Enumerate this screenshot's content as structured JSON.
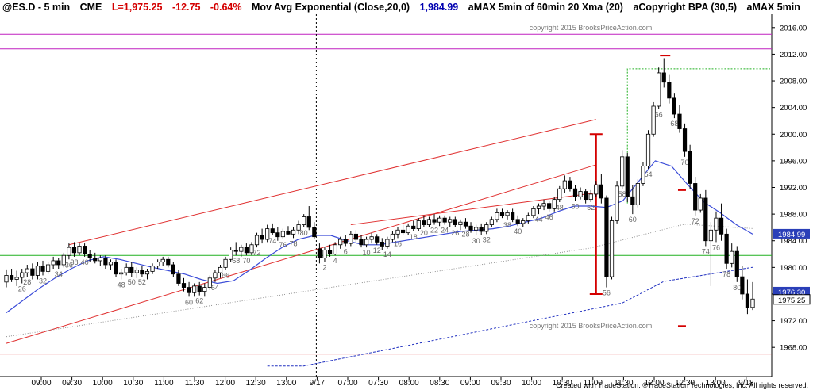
{
  "header": {
    "symbol": "@ES.D - 5 min",
    "exchange": "CME",
    "last": "L=1,975.25",
    "change": "-12.75",
    "change_pct": "-0.64%",
    "indicator": "Mov Avg Exponential (Close,20,0)",
    "indicator_value": "1,984.99",
    "indicator2": "aMAX 5min of 60min 20 Xma (20)",
    "indicator3": "aCopyright BPA (30,5)",
    "indicator4": "aMAX 5min"
  },
  "colors": {
    "up_candle": "#ffffff",
    "down_candle": "#000000",
    "ema": "#3a4bd8",
    "channel": "#e03030",
    "support": "#20b020",
    "magenta": "#c020c0",
    "dotted_gray": "#909090",
    "blue_dashed": "#2030c0",
    "price_box": "#2a3fb8"
  },
  "watermark": "copyright 2015 BrooksPriceAction.com",
  "credit": "Created with TradeStation. ©TradeStation Technologies, Inc. All rights reserved.",
  "chart_data": {
    "type": "candlestick",
    "ylim": [
      1966,
      2018
    ],
    "y_ticks": [
      "2016.00",
      "2012.00",
      "2008.00",
      "2004.00",
      "2000.00",
      "1996.00",
      "1992.00",
      "1988.00",
      "1984.00",
      "1980.00",
      "1976.00",
      "1972.00",
      "1968.00"
    ],
    "x_ticks": [
      "09:00",
      "09:30",
      "10:00",
      "10:30",
      "11:00",
      "11:30",
      "12:00",
      "12:30",
      "13:00",
      "9/17",
      "07:00",
      "07:30",
      "08:00",
      "08:30",
      "09:00",
      "09:30",
      "10:00",
      "10:30",
      "11:00",
      "11:30",
      "12:00",
      "12:30",
      "13:00",
      "9/18"
    ],
    "price_labels": [
      {
        "value": 1984.99,
        "text": "1984.99"
      },
      {
        "value": 1976.3,
        "text": "1976.30"
      },
      {
        "value": 1975.25,
        "text": "1975.25"
      }
    ],
    "horizontal_lines": [
      {
        "name": "magenta-high-1",
        "value": 2015.0
      },
      {
        "name": "magenta-high-2",
        "value": 2012.8
      },
      {
        "name": "green-support",
        "value": 1981.8
      },
      {
        "name": "red-low",
        "value": 1967.0
      }
    ],
    "bar_numbers": [
      {
        "bar": 3,
        "text": "26"
      },
      {
        "bar": 4,
        "text": "28"
      },
      {
        "bar": 7,
        "text": "32"
      },
      {
        "bar": 10,
        "text": "34"
      },
      {
        "bar": 12,
        "text": "36"
      },
      {
        "bar": 13,
        "text": "38"
      },
      {
        "bar": 15,
        "text": "40"
      },
      {
        "bar": 22,
        "text": "48"
      },
      {
        "bar": 24,
        "text": "50"
      },
      {
        "bar": 26,
        "text": "52"
      },
      {
        "bar": 35,
        "text": "60"
      },
      {
        "bar": 37,
        "text": "62"
      },
      {
        "bar": 40,
        "text": "64"
      },
      {
        "bar": 42,
        "text": "66"
      },
      {
        "bar": 44,
        "text": "68"
      },
      {
        "bar": 46,
        "text": "70"
      },
      {
        "bar": 48,
        "text": "72"
      },
      {
        "bar": 51,
        "text": "74"
      },
      {
        "bar": 53,
        "text": "76"
      },
      {
        "bar": 55,
        "text": "78"
      },
      {
        "bar": 57,
        "text": "80"
      },
      {
        "bar": 61,
        "text": "2"
      },
      {
        "bar": 63,
        "text": "4"
      },
      {
        "bar": 65,
        "text": "6"
      },
      {
        "bar": 69,
        "text": "10"
      },
      {
        "bar": 71,
        "text": "12"
      },
      {
        "bar": 73,
        "text": "14"
      },
      {
        "bar": 75,
        "text": "16"
      },
      {
        "bar": 78,
        "text": "18"
      },
      {
        "bar": 80,
        "text": "20"
      },
      {
        "bar": 82,
        "text": "22"
      },
      {
        "bar": 84,
        "text": "24"
      },
      {
        "bar": 86,
        "text": "26"
      },
      {
        "bar": 88,
        "text": "28"
      },
      {
        "bar": 90,
        "text": "30"
      },
      {
        "bar": 92,
        "text": "32"
      },
      {
        "bar": 96,
        "text": "38"
      },
      {
        "bar": 98,
        "text": "40"
      },
      {
        "bar": 102,
        "text": "44"
      },
      {
        "bar": 104,
        "text": "46"
      },
      {
        "bar": 106,
        "text": "48"
      },
      {
        "bar": 109,
        "text": "50"
      },
      {
        "bar": 112,
        "text": "52"
      },
      {
        "bar": 115,
        "text": "56"
      },
      {
        "bar": 118,
        "text": "58"
      },
      {
        "bar": 120,
        "text": "60"
      },
      {
        "bar": 123,
        "text": "64"
      },
      {
        "bar": 125,
        "text": "66"
      },
      {
        "bar": 128,
        "text": "68"
      },
      {
        "bar": 130,
        "text": "70"
      },
      {
        "bar": 132,
        "text": "72"
      },
      {
        "bar": 134,
        "text": "74"
      },
      {
        "bar": 136,
        "text": "76"
      },
      {
        "bar": 138,
        "text": "78"
      },
      {
        "bar": 140,
        "text": "80"
      }
    ],
    "bars": [
      [
        1977.8,
        1979.7,
        1977.0,
        1978.8
      ],
      [
        1978.8,
        1979.8,
        1977.8,
        1978.2
      ],
      [
        1978.2,
        1979.5,
        1977.2,
        1978.5
      ],
      [
        1978.5,
        1979.8,
        1977.6,
        1979.2
      ],
      [
        1979.2,
        1980.4,
        1978.6,
        1979.8
      ],
      [
        1979.8,
        1980.6,
        1978.2,
        1978.8
      ],
      [
        1978.8,
        1980.8,
        1978.2,
        1980.2
      ],
      [
        1980.2,
        1981.0,
        1978.8,
        1979.4
      ],
      [
        1979.4,
        1980.8,
        1979.0,
        1980.4
      ],
      [
        1980.4,
        1981.6,
        1979.8,
        1981.0
      ],
      [
        1981.0,
        1981.4,
        1979.8,
        1980.4
      ],
      [
        1980.4,
        1982.2,
        1980.0,
        1981.8
      ],
      [
        1981.8,
        1983.6,
        1981.2,
        1983.0
      ],
      [
        1983.0,
        1983.8,
        1981.6,
        1982.2
      ],
      [
        1982.2,
        1983.6,
        1981.8,
        1983.2
      ],
      [
        1983.2,
        1983.6,
        1981.6,
        1982.0
      ],
      [
        1982.0,
        1982.6,
        1980.8,
        1981.4
      ],
      [
        1981.4,
        1982.2,
        1980.6,
        1981.0
      ],
      [
        1981.0,
        1981.8,
        1980.2,
        1981.4
      ],
      [
        1981.4,
        1981.8,
        1979.8,
        1980.4
      ],
      [
        1980.4,
        1981.2,
        1979.6,
        1980.8
      ],
      [
        1980.8,
        1981.2,
        1978.6,
        1979.0
      ],
      [
        1979.0,
        1979.8,
        1978.2,
        1979.2
      ],
      [
        1979.2,
        1980.6,
        1978.8,
        1980.0
      ],
      [
        1980.0,
        1980.8,
        1978.6,
        1979.2
      ],
      [
        1979.2,
        1980.0,
        1978.4,
        1979.6
      ],
      [
        1979.6,
        1980.2,
        1978.6,
        1979.0
      ],
      [
        1979.0,
        1979.8,
        1978.2,
        1979.4
      ],
      [
        1979.4,
        1980.6,
        1979.0,
        1980.2
      ],
      [
        1980.2,
        1981.2,
        1979.8,
        1980.8
      ],
      [
        1980.8,
        1981.6,
        1980.2,
        1981.2
      ],
      [
        1981.2,
        1981.6,
        1980.0,
        1980.4
      ],
      [
        1980.4,
        1980.8,
        1978.6,
        1979.0
      ],
      [
        1979.0,
        1979.6,
        1977.2,
        1977.6
      ],
      [
        1977.6,
        1978.4,
        1976.4,
        1977.0
      ],
      [
        1977.0,
        1977.8,
        1975.6,
        1976.2
      ],
      [
        1976.2,
        1977.6,
        1975.6,
        1977.2
      ],
      [
        1977.2,
        1977.8,
        1975.8,
        1976.4
      ],
      [
        1976.4,
        1977.6,
        1975.6,
        1977.0
      ],
      [
        1977.0,
        1978.8,
        1976.6,
        1978.4
      ],
      [
        1978.4,
        1979.6,
        1977.8,
        1979.2
      ],
      [
        1979.2,
        1980.4,
        1978.4,
        1980.0
      ],
      [
        1980.0,
        1981.6,
        1979.6,
        1981.2
      ],
      [
        1981.2,
        1983.0,
        1980.8,
        1982.6
      ],
      [
        1982.6,
        1983.8,
        1981.8,
        1982.4
      ],
      [
        1982.4,
        1983.4,
        1981.6,
        1983.0
      ],
      [
        1983.0,
        1983.6,
        1981.8,
        1982.2
      ],
      [
        1982.2,
        1983.8,
        1981.8,
        1983.4
      ],
      [
        1983.4,
        1985.2,
        1983.0,
        1984.8
      ],
      [
        1984.8,
        1985.8,
        1983.6,
        1984.2
      ],
      [
        1984.2,
        1986.4,
        1983.8,
        1985.8
      ],
      [
        1985.8,
        1986.6,
        1984.8,
        1985.2
      ],
      [
        1985.2,
        1986.0,
        1984.0,
        1984.6
      ],
      [
        1984.6,
        1985.8,
        1984.2,
        1985.4
      ],
      [
        1985.4,
        1986.2,
        1984.8,
        1985.0
      ],
      [
        1985.0,
        1986.0,
        1984.4,
        1985.6
      ],
      [
        1985.6,
        1987.0,
        1985.0,
        1986.4
      ],
      [
        1986.4,
        1988.0,
        1986.0,
        1987.6
      ],
      [
        1987.6,
        1989.2,
        1985.6,
        1986.0
      ],
      [
        1986.0,
        1986.8,
        1984.2,
        1984.6
      ],
      [
        1982.8,
        1983.6,
        1980.6,
        1981.4
      ],
      [
        1981.4,
        1983.0,
        1980.8,
        1982.6
      ],
      [
        1982.6,
        1983.4,
        1981.6,
        1982.0
      ],
      [
        1982.0,
        1983.8,
        1981.8,
        1983.4
      ],
      [
        1983.4,
        1984.6,
        1982.8,
        1984.2
      ],
      [
        1984.2,
        1984.8,
        1983.2,
        1983.6
      ],
      [
        1983.6,
        1985.4,
        1983.2,
        1985.0
      ],
      [
        1985.0,
        1985.6,
        1983.8,
        1984.2
      ],
      [
        1984.2,
        1984.8,
        1983.0,
        1983.4
      ],
      [
        1983.4,
        1984.6,
        1983.0,
        1984.2
      ],
      [
        1984.2,
        1985.2,
        1983.6,
        1984.6
      ],
      [
        1984.6,
        1985.0,
        1983.4,
        1983.8
      ],
      [
        1983.8,
        1984.4,
        1982.6,
        1983.2
      ],
      [
        1983.2,
        1984.6,
        1982.8,
        1984.2
      ],
      [
        1984.2,
        1985.4,
        1983.8,
        1985.0
      ],
      [
        1985.0,
        1986.0,
        1984.4,
        1985.6
      ],
      [
        1985.6,
        1986.4,
        1984.8,
        1985.2
      ],
      [
        1985.2,
        1986.6,
        1984.8,
        1986.2
      ],
      [
        1986.2,
        1987.0,
        1985.4,
        1985.8
      ],
      [
        1985.8,
        1987.4,
        1985.4,
        1987.0
      ],
      [
        1987.0,
        1987.8,
        1986.0,
        1986.4
      ],
      [
        1986.4,
        1987.6,
        1986.0,
        1987.2
      ],
      [
        1987.2,
        1988.0,
        1986.4,
        1986.8
      ],
      [
        1986.8,
        1987.8,
        1986.2,
        1987.4
      ],
      [
        1987.4,
        1987.8,
        1986.4,
        1986.8
      ],
      [
        1986.8,
        1987.6,
        1986.0,
        1987.2
      ],
      [
        1987.2,
        1987.6,
        1986.0,
        1986.4
      ],
      [
        1986.4,
        1987.2,
        1985.6,
        1986.8
      ],
      [
        1986.8,
        1987.4,
        1985.8,
        1986.2
      ],
      [
        1986.2,
        1986.8,
        1985.2,
        1985.6
      ],
      [
        1985.6,
        1986.4,
        1984.8,
        1986.0
      ],
      [
        1986.0,
        1986.6,
        1984.8,
        1985.4
      ],
      [
        1985.4,
        1986.8,
        1985.0,
        1986.4
      ],
      [
        1986.4,
        1987.6,
        1986.0,
        1987.2
      ],
      [
        1987.2,
        1988.8,
        1986.8,
        1988.2
      ],
      [
        1988.2,
        1988.8,
        1987.4,
        1987.8
      ],
      [
        1987.8,
        1988.6,
        1987.2,
        1988.2
      ],
      [
        1988.2,
        1988.8,
        1986.8,
        1987.2
      ],
      [
        1987.2,
        1987.8,
        1986.2,
        1986.6
      ],
      [
        1986.6,
        1987.4,
        1986.0,
        1987.0
      ],
      [
        1987.0,
        1988.2,
        1986.6,
        1987.8
      ],
      [
        1987.8,
        1989.2,
        1987.4,
        1988.8
      ],
      [
        1988.8,
        1989.6,
        1988.0,
        1989.2
      ],
      [
        1989.2,
        1990.2,
        1988.6,
        1989.6
      ],
      [
        1989.6,
        1990.0,
        1988.4,
        1988.8
      ],
      [
        1988.8,
        1990.6,
        1988.4,
        1990.2
      ],
      [
        1990.2,
        1992.2,
        1989.8,
        1991.8
      ],
      [
        1991.8,
        1993.8,
        1991.2,
        1993.0
      ],
      [
        1993.0,
        1993.6,
        1991.4,
        1991.8
      ],
      [
        1991.8,
        1992.4,
        1990.0,
        1990.6
      ],
      [
        1990.6,
        1992.0,
        1990.2,
        1991.4
      ],
      [
        1991.4,
        1991.8,
        1989.6,
        1990.2
      ],
      [
        1990.2,
        1991.6,
        1989.8,
        1991.0
      ],
      [
        1991.0,
        1993.0,
        1990.6,
        1992.4
      ],
      [
        1992.4,
        1994.0,
        1989.6,
        1990.4
      ],
      [
        1990.4,
        1990.8,
        1977.0,
        1978.6
      ],
      [
        1978.6,
        1987.6,
        1978.2,
        1987.0
      ],
      [
        1987.0,
        1993.0,
        1986.6,
        1992.2
      ],
      [
        1992.2,
        1997.6,
        1991.8,
        1996.6
      ],
      [
        1996.6,
        1997.2,
        1989.8,
        1990.6
      ],
      [
        1990.6,
        1992.4,
        1988.0,
        1989.4
      ],
      [
        1989.4,
        1993.2,
        1989.0,
        1992.6
      ],
      [
        1992.6,
        1995.8,
        1992.2,
        1995.2
      ],
      [
        1995.2,
        2000.6,
        1994.8,
        2000.0
      ],
      [
        2000.0,
        2004.8,
        1999.6,
        2004.2
      ],
      [
        2004.2,
        2010.0,
        2003.8,
        2009.2
      ],
      [
        2009.2,
        2011.4,
        2007.0,
        2007.8
      ],
      [
        2007.8,
        2009.0,
        2004.6,
        2005.4
      ],
      [
        2005.4,
        2006.2,
        2002.4,
        2003.0
      ],
      [
        2003.0,
        2004.4,
        2000.2,
        2000.8
      ],
      [
        2000.8,
        2001.6,
        1996.6,
        1997.4
      ],
      [
        1997.4,
        1998.4,
        1991.8,
        1992.6
      ],
      [
        1992.6,
        1993.6,
        1987.8,
        1988.6
      ],
      [
        1988.6,
        1991.0,
        1988.2,
        1990.4
      ],
      [
        1990.4,
        1991.6,
        1983.2,
        1984.0
      ],
      [
        1984.0,
        1986.8,
        1977.2,
        1985.6
      ],
      [
        1985.6,
        1988.4,
        1983.8,
        1987.4
      ],
      [
        1987.4,
        1989.6,
        1984.0,
        1985.0
      ],
      [
        1985.0,
        1985.8,
        1979.8,
        1980.6
      ],
      [
        1980.6,
        1983.6,
        1980.0,
        1982.4
      ],
      [
        1982.4,
        1983.2,
        1977.8,
        1978.6
      ],
      [
        1978.6,
        1980.2,
        1975.2,
        1976.0
      ],
      [
        1976.0,
        1978.2,
        1973.0,
        1974.0
      ],
      [
        1974.0,
        1977.8,
        1973.6,
        1975.25
      ]
    ],
    "ema_values": [
      1973.2,
      1975.0,
      1976.8,
      1978.4,
      1979.8,
      1981.0,
      1981.6,
      1981.2,
      1980.6,
      1980.0,
      1979.5,
      1979.0,
      1978.2,
      1977.6,
      1978.0,
      1979.6,
      1981.4,
      1983.0,
      1984.2,
      1984.8,
      1984.8,
      1984.0,
      1983.4,
      1983.4,
      1983.8,
      1984.2,
      1984.6,
      1985.0,
      1985.4,
      1985.6,
      1985.8,
      1986.2,
      1986.8,
      1987.4,
      1988.4,
      1989.2,
      1989.2,
      1989.0,
      1990.0,
      1993.0,
      1996.0,
      1995.2,
      1992.4,
      1989.8,
      1988.2,
      1986.4,
      1984.99
    ],
    "watermark_text": "copyright 2015 BrooksPriceAction.com"
  }
}
